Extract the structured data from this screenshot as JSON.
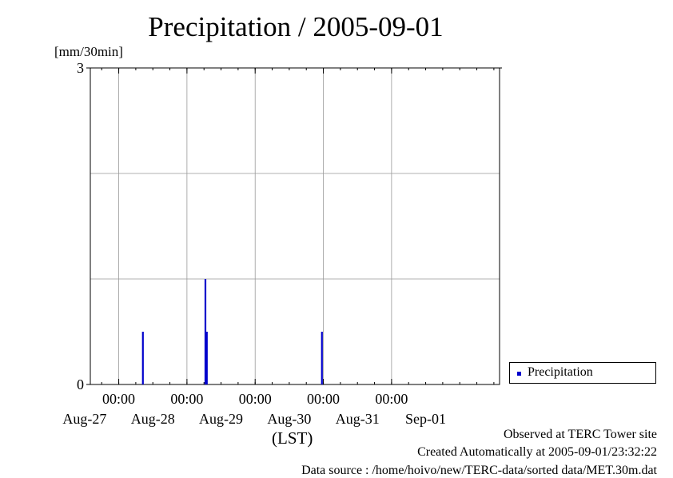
{
  "chart_data": {
    "type": "bar",
    "title": "Precipitation / 2005-09-01",
    "ylabel": "[mm/30min]",
    "xlabel": "(LST)",
    "ylim": [
      0,
      3
    ],
    "y_tick_labels": [
      "0",
      "3"
    ],
    "y_grid": [
      1,
      2
    ],
    "x_start": "2005-08-26 14:00",
    "x_end": "2005-09-01 14:00",
    "x_ticks": [
      {
        "time": "2005-08-27 00:00",
        "label": "00:00"
      },
      {
        "time": "2005-08-28 00:00",
        "label": "00:00"
      },
      {
        "time": "2005-08-29 00:00",
        "label": "00:00"
      },
      {
        "time": "2005-08-30 00:00",
        "label": "00:00"
      },
      {
        "time": "2005-08-31 00:00",
        "label": "00:00"
      }
    ],
    "date_labels": [
      {
        "time": "2005-08-26 12:00",
        "label": "Aug-27"
      },
      {
        "time": "2005-08-27 12:00",
        "label": "Aug-28"
      },
      {
        "time": "2005-08-28 12:00",
        "label": "Aug-29"
      },
      {
        "time": "2005-08-29 12:00",
        "label": "Aug-30"
      },
      {
        "time": "2005-08-30 12:00",
        "label": "Aug-31"
      },
      {
        "time": "2005-08-31 12:00",
        "label": "Sep-01"
      }
    ],
    "grid": true,
    "legend_position": "right",
    "series": [
      {
        "name": "Precipitation",
        "color": "#0000cc",
        "points": [
          {
            "time": "2005-08-27 08:30",
            "value": 0.5
          },
          {
            "time": "2005-08-28 06:30",
            "value": 1.0
          },
          {
            "time": "2005-08-28 07:00",
            "value": 0.5
          },
          {
            "time": "2005-08-29 23:30",
            "value": 0.5
          }
        ]
      }
    ]
  },
  "notes": {
    "site": "Observed at TERC Tower site",
    "created": "Created Automatically at 2005-09-01/23:32:22",
    "source": "Data source : /home/hoivo/new/TERC-data/sorted  data/MET.30m.dat"
  }
}
